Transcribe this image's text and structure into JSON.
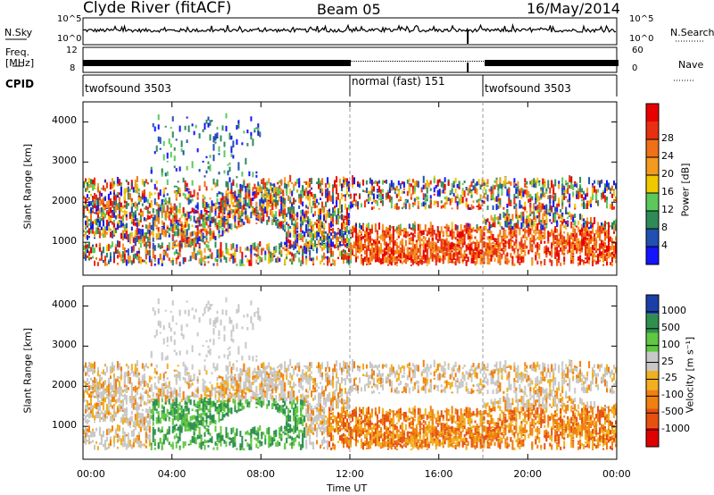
{
  "header": {
    "radar": "Clyde River (fitACF)",
    "beam": "Beam 05",
    "date": "16/May/2014"
  },
  "top_panels": {
    "nsky_label": "N.Sky",
    "nsearch_label": "N.Search",
    "nsky_ticks": [
      "10^5",
      "10^0"
    ],
    "freq_label_1": "Freq.",
    "freq_label_2": "[MHz]",
    "freq_ticks": [
      "12",
      "8"
    ],
    "nave_label": "Nave",
    "nave_ticks": [
      "60",
      "0"
    ],
    "cpid_label": "CPID",
    "cpid_segments": [
      {
        "name": "twofsound 3503",
        "start_hour": 0
      },
      {
        "name": "normal (fast) 151",
        "start_hour": 12
      },
      {
        "name": "twofsound 3503",
        "start_hour": 18
      }
    ]
  },
  "chart_data": [
    {
      "type": "heatmap",
      "title": "",
      "ylabel": "Slant Range [km]",
      "xlabel": "",
      "xlim": [
        0,
        24
      ],
      "ylim": [
        180,
        4500
      ],
      "yticks": [
        1000,
        2000,
        3000,
        4000
      ],
      "colorbar": {
        "label": "Power [dB]",
        "ticks": [
          4,
          8,
          12,
          16,
          20,
          24,
          28
        ],
        "colors": [
          "#1414ff",
          "#2050b0",
          "#2e8b57",
          "#5cc85c",
          "#f0c800",
          "#f59a20",
          "#f07018",
          "#e83010",
          "#e80000"
        ]
      }
    },
    {
      "type": "heatmap",
      "title": "",
      "ylabel": "Slant Range [km]",
      "xlabel": "Time UT",
      "xlim": [
        0,
        24
      ],
      "ylim": [
        180,
        4500
      ],
      "yticks": [
        1000,
        2000,
        3000,
        4000
      ],
      "xticklabels": [
        "00:00",
        "04:00",
        "08:00",
        "12:00",
        "16:00",
        "20:00",
        "00:00"
      ],
      "colorbar": {
        "label": "Velocity [m s⁻¹]",
        "ticks": [
          "1000",
          "500",
          "100",
          "25",
          "-25",
          "-100",
          "-500",
          "-1000"
        ],
        "colors": [
          "#1a3fa8",
          "#2f8f4f",
          "#60c840",
          "#c8c8c8",
          "#f0b020",
          "#f08010",
          "#e85010",
          "#e00000"
        ]
      }
    }
  ]
}
